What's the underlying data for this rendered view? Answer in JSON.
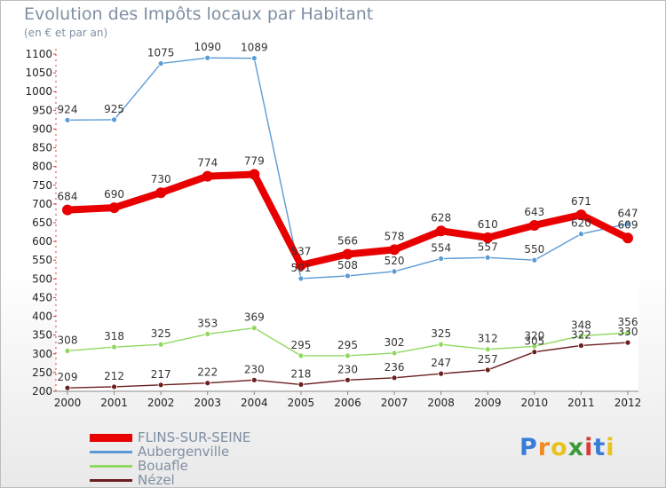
{
  "title": "Evolution des Impôts locaux par Habitant",
  "subtitle": "(en € et par an)",
  "logo": {
    "letters": [
      "P",
      "r",
      "o",
      "x",
      "i",
      "t",
      "i"
    ],
    "colors": [
      "#3a7dd8",
      "#f08a24",
      "#e8c21c",
      "#3a9a3a",
      "#d93a3a",
      "#3a7dd8",
      "#e8c21c"
    ]
  },
  "chart_data": {
    "type": "line",
    "x": [
      "2000",
      "2001",
      "2002",
      "2003",
      "2004",
      "2005",
      "2006",
      "2007",
      "2008",
      "2009",
      "2010",
      "2011",
      "2012"
    ],
    "ylim": [
      200,
      1100
    ],
    "yticks": [
      "200",
      "250",
      "300",
      "350",
      "400",
      "450",
      "500",
      "550",
      "600",
      "650",
      "700",
      "750",
      "800",
      "850",
      "900",
      "950",
      "1000",
      "1050",
      "1100"
    ],
    "grid": false,
    "legend_position": "bottom-left",
    "series": [
      {
        "name": "FLINS-SUR-SEINE",
        "color": "#e80000",
        "values": [
          684,
          690,
          730,
          774,
          779,
          537,
          566,
          578,
          628,
          610,
          643,
          671,
          609
        ]
      },
      {
        "name": "Aubergenville",
        "color": "#5b9bd5",
        "values": [
          924,
          925,
          1075,
          1090,
          1089,
          501,
          508,
          520,
          554,
          557,
          550,
          620,
          647
        ]
      },
      {
        "name": "Bouafle",
        "color": "#90d860",
        "values": [
          308,
          318,
          325,
          353,
          369,
          295,
          295,
          302,
          325,
          312,
          320,
          348,
          356
        ]
      },
      {
        "name": "Nézel",
        "color": "#6b1e1e",
        "values": [
          209,
          212,
          217,
          222,
          230,
          218,
          230,
          236,
          247,
          257,
          305,
          322,
          330
        ]
      }
    ]
  }
}
